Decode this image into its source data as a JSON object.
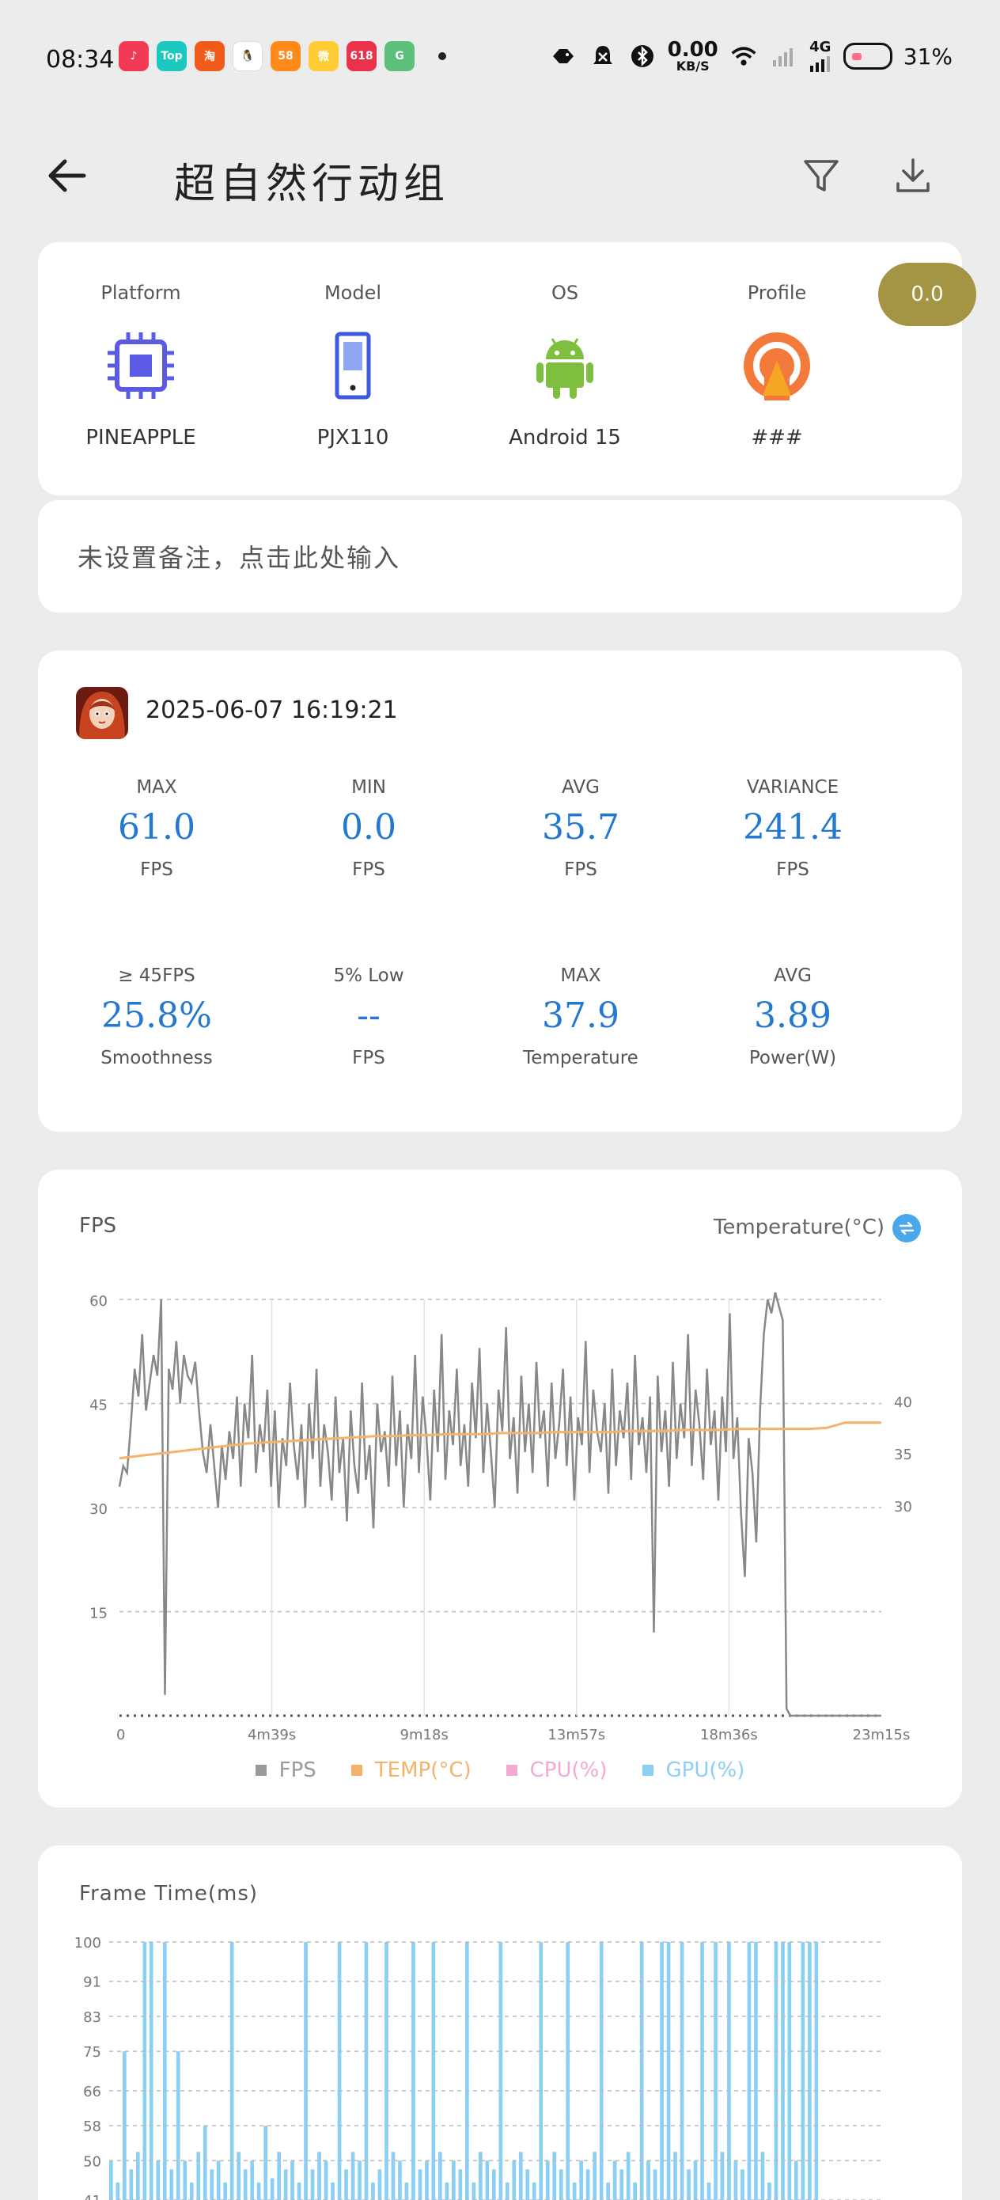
{
  "status_bar": {
    "time": "08:34",
    "apps": [
      {
        "name": "music-app-icon",
        "label": "♪",
        "color": "#f23a55"
      },
      {
        "name": "top-app-icon",
        "label": "Top",
        "color": "#1bc9c0"
      },
      {
        "name": "taobao-app-icon",
        "label": "淘",
        "color": "#f05a1a"
      },
      {
        "name": "qq-app-icon",
        "label": "🐧",
        "color": "#ffffff"
      },
      {
        "name": "58-app-icon",
        "label": "58",
        "color": "#ff8a1a"
      },
      {
        "name": "weibo-app-icon",
        "label": "微",
        "color": "#ffcc33"
      },
      {
        "name": "618-app-icon",
        "label": "618",
        "color": "#e8334a"
      },
      {
        "name": "green-app-icon",
        "label": "G",
        "color": "#5cc07a"
      }
    ],
    "speed_value": "0.00",
    "speed_unit": "KB/S",
    "network": "4G",
    "battery": "31%"
  },
  "header": {
    "title": "超自然行动组"
  },
  "device": {
    "platform_label": "Platform",
    "platform_value": "PINEAPPLE",
    "model_label": "Model",
    "model_value": "PJX110",
    "os_label": "OS",
    "os_value": "Android 15",
    "profile_label": "Profile",
    "profile_value": "###",
    "profile_pill": "0.0"
  },
  "remark": {
    "placeholder": "未设置备注，点击此处输入"
  },
  "session": {
    "datetime": "2025-06-07 16:19:21",
    "stats_row1": [
      {
        "label": "MAX",
        "value": "61.0",
        "unit": "FPS"
      },
      {
        "label": "MIN",
        "value": "0.0",
        "unit": "FPS"
      },
      {
        "label": "AVG",
        "value": "35.7",
        "unit": "FPS"
      },
      {
        "label": "VARIANCE",
        "value": "241.4",
        "unit": "FPS"
      }
    ],
    "stats_row2": [
      {
        "label": "≥ 45FPS",
        "value": "25.8%",
        "unit": "Smoothness"
      },
      {
        "label": "5% Low",
        "value": "--",
        "unit": "FPS"
      },
      {
        "label": "MAX",
        "value": "37.9",
        "unit": "Temperature"
      },
      {
        "label": "AVG",
        "value": "3.89",
        "unit": "Power(W)"
      }
    ]
  },
  "chart_data": [
    {
      "type": "line",
      "title": "FPS",
      "ylabel": "FPS",
      "y2label": "Temperature(°C)",
      "ylim": [
        0,
        60
      ],
      "y2ticks": [
        "40",
        "35",
        "30"
      ],
      "yticks": [
        "60",
        "45",
        "30",
        "15"
      ],
      "x_ticks": [
        "0",
        "4m39s",
        "9m18s",
        "13m57s",
        "18m36s",
        "23m15s"
      ],
      "legend": [
        {
          "label": "FPS",
          "color": "#999999"
        },
        {
          "label": "TEMP(°C)",
          "color": "#f5b26b"
        },
        {
          "label": "CPU(%)",
          "color": "#f4a8d4"
        },
        {
          "label": "GPU(%)",
          "color": "#8ccff4"
        }
      ],
      "series": [
        {
          "name": "FPS",
          "color": "#888888",
          "values": [
            33,
            36,
            35,
            42,
            50,
            46,
            55,
            44,
            48,
            52,
            49,
            60,
            3,
            50,
            47,
            54,
            45,
            52,
            49,
            48,
            51,
            44,
            38,
            35,
            42,
            36,
            30,
            39,
            34,
            41,
            37,
            46,
            33,
            45,
            40,
            52,
            35,
            42,
            38,
            47,
            33,
            44,
            30,
            40,
            36,
            48,
            39,
            34,
            42,
            30,
            45,
            37,
            50,
            33,
            42,
            38,
            31,
            46,
            35,
            40,
            28,
            44,
            36,
            32,
            48,
            34,
            39,
            27,
            45,
            38,
            41,
            33,
            49,
            36,
            44,
            30,
            42,
            37,
            52,
            35,
            46,
            40,
            31,
            47,
            38,
            55,
            34,
            44,
            39,
            50,
            36,
            42,
            33,
            48,
            40,
            53,
            35,
            45,
            38,
            30,
            47,
            41,
            56,
            37,
            43,
            32,
            49,
            38,
            45,
            35,
            51,
            40,
            44,
            33,
            48,
            37,
            42,
            50,
            36,
            46,
            31,
            43,
            39,
            54,
            35,
            47,
            41,
            38,
            45,
            32,
            50,
            36,
            44,
            40,
            48,
            34,
            52,
            39,
            43,
            35,
            46,
            12,
            49,
            38,
            44,
            33,
            51,
            37,
            45,
            40,
            55,
            36,
            47,
            42,
            34,
            50,
            39,
            44,
            31,
            46,
            38,
            58,
            37,
            43,
            29,
            20,
            40,
            35,
            25,
            44,
            55,
            60,
            58,
            61,
            59,
            57,
            1,
            0,
            0,
            0,
            0,
            0,
            0,
            0,
            0,
            0,
            0,
            0,
            0,
            0,
            0,
            0,
            0,
            0,
            0,
            0,
            0,
            0,
            0,
            0,
            0,
            0
          ]
        },
        {
          "name": "TEMP(°C)",
          "color": "#f5b26b",
          "values": [
            34.5,
            34.7,
            34.9,
            35.1,
            35.3,
            35.5,
            35.7,
            35.9,
            36.0,
            36.1,
            36.2,
            36.3,
            36.4,
            36.5,
            36.6,
            36.6,
            36.7,
            36.7,
            36.8,
            36.8,
            36.8,
            36.9,
            36.9,
            36.9,
            37.0,
            37.0,
            37.0,
            37.0,
            37.1,
            37.1,
            37.1,
            37.2,
            37.2,
            37.2,
            37.3,
            37.3,
            37.3,
            37.3,
            37.3,
            37.4,
            37.9,
            37.9,
            37.9
          ]
        }
      ]
    },
    {
      "type": "bar",
      "title": "Frame Time(ms)",
      "yticks": [
        "100",
        "91",
        "83",
        "75",
        "66",
        "58",
        "50",
        "41"
      ],
      "ylim": [
        41,
        100
      ],
      "color": "#8ccff4",
      "values": [
        50,
        45,
        75,
        48,
        52,
        100,
        100,
        50,
        100,
        48,
        75,
        50,
        45,
        52,
        58,
        48,
        50,
        45,
        100,
        52,
        48,
        50,
        45,
        58,
        46,
        52,
        48,
        50,
        45,
        100,
        48,
        52,
        50,
        45,
        100,
        48,
        52,
        50,
        100,
        45,
        48,
        100,
        52,
        50,
        45,
        100,
        48,
        50,
        100,
        52,
        45,
        50,
        48,
        100,
        45,
        52,
        50,
        48,
        100,
        45,
        50,
        52,
        48,
        45,
        100,
        50,
        52,
        48,
        100,
        45,
        50,
        48,
        52,
        100,
        45,
        50,
        48,
        52,
        45,
        100,
        50,
        48,
        100,
        100,
        52,
        100,
        48,
        50,
        100,
        45,
        100,
        52,
        100,
        50,
        48,
        100,
        100,
        52,
        45,
        100,
        100,
        100,
        50,
        100,
        100,
        100
      ]
    }
  ]
}
